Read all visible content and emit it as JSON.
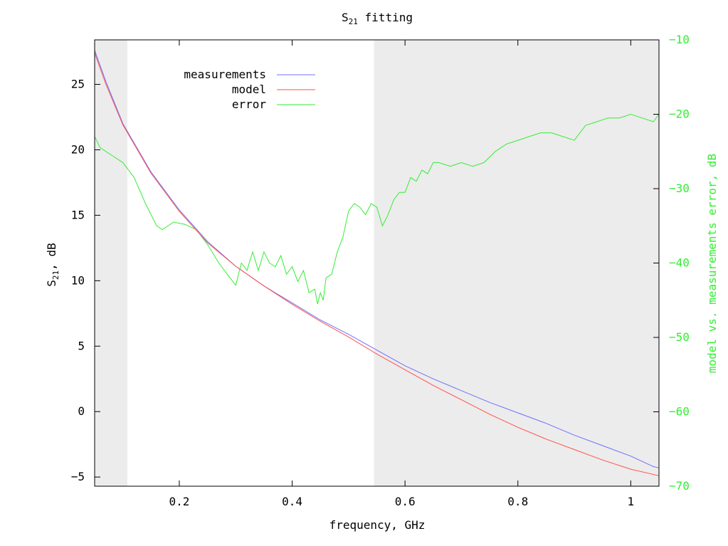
{
  "chart_data": {
    "type": "line",
    "title": "S",
    "title_sub": "21",
    "title_rest": " fitting",
    "xlabel": "frequency, GHz",
    "ylabel": "S",
    "ylabel_sub": "21",
    "ylabel_rest": ", dB",
    "y2label": "model vs. measurements error, dB",
    "xlim": [
      0.05,
      1.05
    ],
    "ylim": [
      -5.7,
      28.4
    ],
    "y2lim": [
      -70,
      -10
    ],
    "x_ticks": [
      {
        "v": 0.2,
        "label": "0.2"
      },
      {
        "v": 0.4,
        "label": "0.4"
      },
      {
        "v": 0.6,
        "label": "0.6"
      },
      {
        "v": 0.8,
        "label": "0.8"
      },
      {
        "v": 1.0,
        "label": "1"
      }
    ],
    "y_ticks": [
      {
        "v": 25,
        "label": "25"
      },
      {
        "v": 20,
        "label": "20"
      },
      {
        "v": 15,
        "label": "15"
      },
      {
        "v": 10,
        "label": "10"
      },
      {
        "v": 5,
        "label": "5"
      },
      {
        "v": 0,
        "label": "0"
      },
      {
        "v": -5,
        "label": "−5"
      }
    ],
    "y2_ticks": [
      {
        "v": -10,
        "label": "−10"
      },
      {
        "v": -20,
        "label": "−20"
      },
      {
        "v": -30,
        "label": "−30"
      },
      {
        "v": -40,
        "label": "−40"
      },
      {
        "v": -50,
        "label": "−50"
      },
      {
        "v": -60,
        "label": "−60"
      },
      {
        "v": -70,
        "label": "−70"
      }
    ],
    "shaded_x_ranges": [
      [
        0.05,
        0.108
      ],
      [
        0.545,
        1.05
      ]
    ],
    "grid": false,
    "legend_position": "top-left",
    "series": [
      {
        "name": "measurements",
        "axis": "left",
        "color": "#6f6fff",
        "x": [
          0.05,
          0.07,
          0.1,
          0.15,
          0.2,
          0.25,
          0.3,
          0.35,
          0.4,
          0.45,
          0.5,
          0.55,
          0.6,
          0.65,
          0.7,
          0.75,
          0.8,
          0.85,
          0.9,
          0.95,
          1.0,
          1.04,
          1.05
        ],
        "y": [
          27.6,
          25.2,
          22.0,
          18.3,
          15.4,
          13.0,
          11.1,
          9.6,
          8.3,
          7.0,
          5.9,
          4.7,
          3.5,
          2.5,
          1.6,
          0.7,
          -0.1,
          -0.9,
          -1.8,
          -2.6,
          -3.4,
          -4.2,
          -4.3
        ]
      },
      {
        "name": "model",
        "axis": "left",
        "color": "#ff5050",
        "x": [
          0.05,
          0.07,
          0.1,
          0.15,
          0.2,
          0.25,
          0.3,
          0.35,
          0.4,
          0.45,
          0.5,
          0.55,
          0.6,
          0.65,
          0.7,
          0.75,
          0.8,
          0.85,
          0.9,
          0.95,
          1.0,
          1.05
        ],
        "y": [
          27.4,
          25.0,
          21.9,
          18.2,
          15.3,
          12.9,
          11.1,
          9.6,
          8.2,
          6.9,
          5.7,
          4.4,
          3.2,
          2.0,
          0.9,
          -0.2,
          -1.2,
          -2.1,
          -2.9,
          -3.7,
          -4.4,
          -4.9
        ]
      },
      {
        "name": "error",
        "axis": "right",
        "color": "#33ee33",
        "x": [
          0.05,
          0.06,
          0.08,
          0.1,
          0.12,
          0.14,
          0.16,
          0.17,
          0.19,
          0.21,
          0.23,
          0.25,
          0.27,
          0.29,
          0.3,
          0.31,
          0.32,
          0.33,
          0.34,
          0.35,
          0.36,
          0.37,
          0.38,
          0.39,
          0.4,
          0.41,
          0.42,
          0.43,
          0.44,
          0.445,
          0.45,
          0.455,
          0.46,
          0.47,
          0.48,
          0.49,
          0.5,
          0.51,
          0.52,
          0.53,
          0.54,
          0.55,
          0.56,
          0.57,
          0.58,
          0.59,
          0.6,
          0.61,
          0.62,
          0.63,
          0.64,
          0.65,
          0.66,
          0.68,
          0.7,
          0.72,
          0.74,
          0.76,
          0.78,
          0.8,
          0.82,
          0.84,
          0.86,
          0.88,
          0.9,
          0.92,
          0.94,
          0.96,
          0.98,
          1.0,
          1.02,
          1.04,
          1.05
        ],
        "y": [
          -23,
          -24.5,
          -25.5,
          -26.5,
          -28.5,
          -32,
          -35,
          -35.5,
          -34.5,
          -34.8,
          -35.5,
          -37.5,
          -40,
          -42,
          -43,
          -40,
          -41,
          -38.5,
          -41,
          -38.5,
          -40,
          -40.5,
          -39,
          -41.5,
          -40.5,
          -42.5,
          -41,
          -44,
          -43.5,
          -45.5,
          -44,
          -45,
          -42,
          -41.5,
          -38.5,
          -36.5,
          -33,
          -32,
          -32.5,
          -33.5,
          -32,
          -32.5,
          -35,
          -33.5,
          -31.5,
          -30.5,
          -30.5,
          -28.5,
          -29,
          -27.5,
          -28,
          -26.5,
          -26.5,
          -27,
          -26.5,
          -27,
          -26.5,
          -25,
          -24,
          -23.5,
          -23,
          -22.5,
          -22.5,
          -23,
          -23.5,
          -21.5,
          -21,
          -20.5,
          -20.5,
          -20,
          -20.5,
          -21,
          -20
        ]
      }
    ]
  }
}
